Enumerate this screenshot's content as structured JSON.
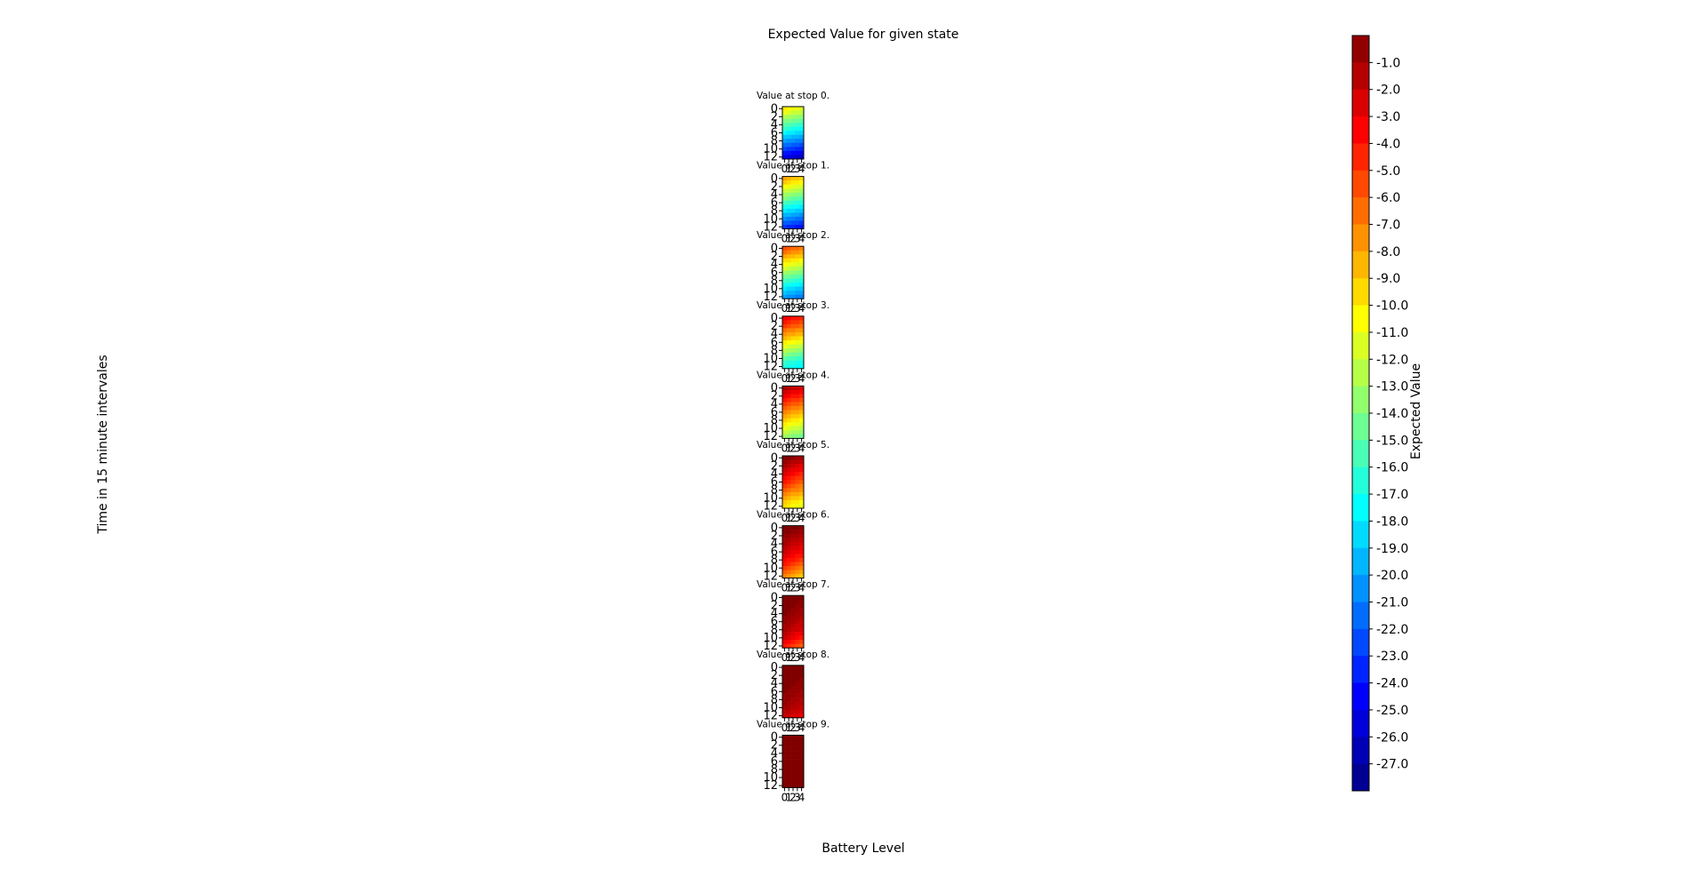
{
  "chart_data": {
    "type": "heatmap",
    "title": "Expected Value for given state",
    "xlabel": "Battery Level",
    "ylabel": "Time in 15 minute intervales",
    "colorbar_label": "Expected Value",
    "colormap": "jet",
    "vmin": -28,
    "vmax": 0,
    "colorbar_ticks": [
      -1.0,
      -2.0,
      -3.0,
      -4.0,
      -5.0,
      -6.0,
      -7.0,
      -8.0,
      -9.0,
      -10.0,
      -11.0,
      -12.0,
      -13.0,
      -14.0,
      -15.0,
      -16.0,
      -17.0,
      -18.0,
      -19.0,
      -20.0,
      -21.0,
      -22.0,
      -23.0,
      -24.0,
      -25.0,
      -26.0,
      -27.0
    ],
    "x_ticks": [
      0,
      1,
      2,
      3,
      4
    ],
    "y_ticks": [
      0,
      2,
      4,
      6,
      8,
      10,
      12
    ],
    "panels": [
      {
        "title": "Value at stop 0.",
        "values": [
          [
            -10,
            -10.5,
            -11,
            -11,
            -11.5
          ],
          [
            -11,
            -11.5,
            -12,
            -12,
            -12.5
          ],
          [
            -12.5,
            -13,
            -13,
            -13.5,
            -13.5
          ],
          [
            -14,
            -14,
            -14.5,
            -14.5,
            -15
          ],
          [
            -15,
            -15.5,
            -15.5,
            -16,
            -16
          ],
          [
            -16,
            -16.5,
            -17,
            -17,
            -17.5
          ],
          [
            -17.5,
            -18,
            -18,
            -18.5,
            -18.5
          ],
          [
            -19,
            -19,
            -19.5,
            -19.5,
            -20
          ],
          [
            -20,
            -20.5,
            -20.5,
            -21,
            -21
          ],
          [
            -21.5,
            -21.5,
            -22,
            -22,
            -22.5
          ],
          [
            -22.5,
            -23,
            -23,
            -23.5,
            -23.5
          ],
          [
            -24,
            -24,
            -24.5,
            -24.5,
            -25
          ],
          [
            -25,
            -25.5,
            -25.5,
            -26,
            -26
          ]
        ]
      },
      {
        "title": "Value at stop 1.",
        "values": [
          [
            -8,
            -8.5,
            -9,
            -9,
            -9.5
          ],
          [
            -9,
            -9.5,
            -10,
            -10,
            -10.5
          ],
          [
            -10.5,
            -11,
            -11,
            -11.5,
            -11.5
          ],
          [
            -12,
            -12,
            -12.5,
            -12.5,
            -13
          ],
          [
            -13,
            -13.5,
            -13.5,
            -14,
            -14
          ],
          [
            -14,
            -14.5,
            -15,
            -15,
            -15.5
          ],
          [
            -15.5,
            -16,
            -16,
            -16.5,
            -16.5
          ],
          [
            -17,
            -17,
            -17.5,
            -17.5,
            -18
          ],
          [
            -18,
            -18.5,
            -18.5,
            -19,
            -19
          ],
          [
            -19.5,
            -19.5,
            -20,
            -20,
            -20.5
          ],
          [
            -20.5,
            -21,
            -21,
            -21.5,
            -21.5
          ],
          [
            -22,
            -22,
            -22.5,
            -22.5,
            -23
          ],
          [
            -23,
            -23.5,
            -23.5,
            -24,
            -24
          ]
        ]
      },
      {
        "title": "Value at stop 2.",
        "values": [
          [
            -5.5,
            -6,
            -6.5,
            -6.5,
            -7
          ],
          [
            -6.5,
            -7,
            -7.5,
            -7.5,
            -8
          ],
          [
            -8,
            -8.5,
            -8.5,
            -9,
            -9
          ],
          [
            -9.5,
            -9.5,
            -10,
            -10,
            -10.5
          ],
          [
            -10.5,
            -11,
            -11,
            -11.5,
            -11.5
          ],
          [
            -11.5,
            -12,
            -12.5,
            -12.5,
            -13
          ],
          [
            -13,
            -13.5,
            -13.5,
            -14,
            -14
          ],
          [
            -14.5,
            -14.5,
            -15,
            -15,
            -15.5
          ],
          [
            -15.5,
            -16,
            -16,
            -16.5,
            -16.5
          ],
          [
            -17,
            -17,
            -17.5,
            -17.5,
            -18
          ],
          [
            -18,
            -18.5,
            -18.5,
            -19,
            -19
          ],
          [
            -19,
            -19.5,
            -19.5,
            -20,
            -20
          ],
          [
            -20,
            -20.5,
            -20.5,
            -21,
            -21
          ]
        ]
      },
      {
        "title": "Value at stop 3.",
        "values": [
          [
            -3,
            -3.5,
            -4,
            -4,
            -4.5
          ],
          [
            -4,
            -4.5,
            -5,
            -5,
            -5.5
          ],
          [
            -5,
            -5.5,
            -6,
            -6,
            -6.5
          ],
          [
            -6.5,
            -7,
            -7,
            -7.5,
            -7.5
          ],
          [
            -7.5,
            -8,
            -8,
            -8.5,
            -8.5
          ],
          [
            -8.5,
            -9,
            -9.5,
            -9.5,
            -10
          ],
          [
            -10,
            -10.5,
            -10.5,
            -11,
            -11
          ],
          [
            -11,
            -11.5,
            -12,
            -12,
            -12.5
          ],
          [
            -12.5,
            -13,
            -13,
            -13.5,
            -13.5
          ],
          [
            -13.5,
            -14,
            -14.5,
            -14.5,
            -15
          ],
          [
            -15,
            -15.5,
            -15.5,
            -16,
            -16
          ],
          [
            -16,
            -16.5,
            -16.5,
            -17,
            -17
          ],
          [
            -16.5,
            -17,
            -17,
            -17.5,
            -17.5
          ]
        ]
      },
      {
        "title": "Value at stop 4.",
        "values": [
          [
            -1,
            -1.5,
            -2,
            -2,
            -2.5
          ],
          [
            -2,
            -2.5,
            -3,
            -3,
            -3.5
          ],
          [
            -3,
            -3.5,
            -4,
            -4,
            -4.5
          ],
          [
            -4,
            -4.5,
            -5,
            -5,
            -5.5
          ],
          [
            -5,
            -5.5,
            -6,
            -6,
            -6.5
          ],
          [
            -6,
            -6.5,
            -7,
            -7,
            -7.5
          ],
          [
            -7,
            -7.5,
            -8,
            -8,
            -8.5
          ],
          [
            -8,
            -8.5,
            -9,
            -9,
            -9.5
          ],
          [
            -9,
            -9.5,
            -10,
            -10,
            -10.5
          ],
          [
            -10,
            -10.5,
            -11,
            -11,
            -11.5
          ],
          [
            -11,
            -11.5,
            -12,
            -12,
            -12.5
          ],
          [
            -12,
            -12.5,
            -13,
            -13,
            -13.5
          ],
          [
            -13,
            -13.5,
            -14,
            -14,
            -14.5
          ]
        ]
      },
      {
        "title": "Value at stop 5.",
        "values": [
          [
            0,
            0,
            -0.5,
            -1,
            -1
          ],
          [
            -0.5,
            -1,
            -1.5,
            -1.5,
            -2
          ],
          [
            -1,
            -1.5,
            -2,
            -2.5,
            -3
          ],
          [
            -2,
            -2.5,
            -3,
            -3,
            -3.5
          ],
          [
            -2.5,
            -3,
            -3.5,
            -4,
            -4.5
          ],
          [
            -3.5,
            -4,
            -4.5,
            -5,
            -5
          ],
          [
            -4,
            -4.5,
            -5,
            -5.5,
            -6
          ],
          [
            -5,
            -5.5,
            -6,
            -6.5,
            -7
          ],
          [
            -6,
            -6.5,
            -7,
            -7,
            -7.5
          ],
          [
            -7,
            -7.5,
            -8,
            -8,
            -8.5
          ],
          [
            -8,
            -8.5,
            -9,
            -9,
            -9.5
          ],
          [
            -9,
            -9.5,
            -10,
            -10,
            -10.5
          ],
          [
            -9.5,
            -10,
            -10.5,
            -11,
            -11
          ]
        ]
      },
      {
        "title": "Value at stop 6.",
        "values": [
          [
            0,
            0,
            0,
            0,
            -0.5
          ],
          [
            0,
            0,
            -0.5,
            -0.5,
            -1
          ],
          [
            -0.5,
            -0.5,
            -1,
            -1,
            -1.5
          ],
          [
            -1,
            -1,
            -1.5,
            -1.5,
            -2
          ],
          [
            -1,
            -1.5,
            -2,
            -2,
            -2.5
          ],
          [
            -1.5,
            -2,
            -2.5,
            -2.5,
            -3
          ],
          [
            -2,
            -2.5,
            -3,
            -3,
            -3.5
          ],
          [
            -2.5,
            -3,
            -3.5,
            -4,
            -4
          ],
          [
            -3.5,
            -4,
            -4,
            -4.5,
            -5
          ],
          [
            -4,
            -4.5,
            -5,
            -5.5,
            -6
          ],
          [
            -5,
            -5.5,
            -6,
            -6.5,
            -7
          ],
          [
            -6,
            -6.5,
            -7,
            -7.5,
            -8
          ],
          [
            -7,
            -7.5,
            -8,
            -8.5,
            -9
          ]
        ]
      },
      {
        "title": "Value at stop 7.",
        "values": [
          [
            0,
            0,
            0,
            0,
            0
          ],
          [
            0,
            0,
            0,
            0,
            -0.5
          ],
          [
            0,
            0,
            0,
            -0.5,
            -0.5
          ],
          [
            0,
            0,
            -0.5,
            -0.5,
            -1
          ],
          [
            0,
            -0.5,
            -0.5,
            -1,
            -1
          ],
          [
            -0.5,
            -0.5,
            -1,
            -1,
            -1.5
          ],
          [
            -0.5,
            -1,
            -1,
            -1.5,
            -2
          ],
          [
            -1,
            -1,
            -1.5,
            -2,
            -2
          ],
          [
            -1,
            -1.5,
            -2,
            -2,
            -2.5
          ],
          [
            -1.5,
            -2,
            -2.5,
            -3,
            -3
          ],
          [
            -2,
            -2.5,
            -3,
            -3.5,
            -4
          ],
          [
            -3,
            -3.5,
            -4,
            -4.5,
            -5
          ],
          [
            -4,
            -4.5,
            -5,
            -5.5,
            -6
          ]
        ]
      },
      {
        "title": "Value at stop 8.",
        "values": [
          [
            0,
            0,
            0,
            0,
            0
          ],
          [
            0,
            0,
            0,
            0,
            0
          ],
          [
            0,
            0,
            0,
            0,
            0
          ],
          [
            0,
            0,
            0,
            0,
            -0.5
          ],
          [
            0,
            0,
            0,
            -0.5,
            -0.5
          ],
          [
            0,
            0,
            -0.5,
            -0.5,
            -0.5
          ],
          [
            0,
            -0.5,
            -0.5,
            -0.5,
            -1
          ],
          [
            -0.5,
            -0.5,
            -0.5,
            -1,
            -1
          ],
          [
            -0.5,
            -0.5,
            -1,
            -1,
            -1.5
          ],
          [
            -0.5,
            -1,
            -1,
            -1.5,
            -1.5
          ],
          [
            -1,
            -1,
            -1.5,
            -1.5,
            -2
          ],
          [
            -1.5,
            -1.5,
            -2,
            -2,
            -2.5
          ],
          [
            -2,
            -2,
            -2.5,
            -2.5,
            -3
          ]
        ]
      },
      {
        "title": "Value at stop 9.",
        "values": [
          [
            0,
            0,
            0,
            0,
            0
          ],
          [
            0,
            0,
            0,
            0,
            0
          ],
          [
            0,
            0,
            0,
            0,
            0
          ],
          [
            0,
            0,
            0,
            0,
            0
          ],
          [
            0,
            0,
            0,
            0,
            0
          ],
          [
            0,
            0,
            0,
            0,
            0
          ],
          [
            0,
            0,
            0,
            0,
            0
          ],
          [
            0,
            0,
            0,
            0,
            0
          ],
          [
            0,
            0,
            0,
            0,
            0
          ],
          [
            0,
            0,
            0,
            0,
            0
          ],
          [
            0,
            0,
            0,
            0,
            0
          ],
          [
            0,
            0,
            0,
            0,
            0
          ],
          [
            0,
            0,
            0,
            0,
            0
          ]
        ]
      }
    ]
  }
}
